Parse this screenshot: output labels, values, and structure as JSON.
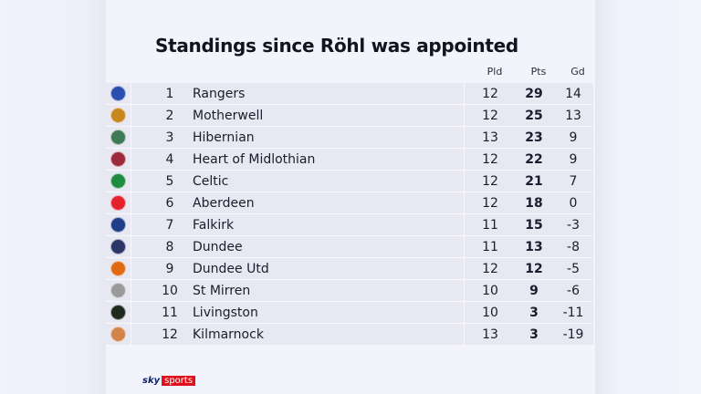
{
  "title": "Standings since Röhl was appointed",
  "columns": {
    "pld": "Pld",
    "pts": "Pts",
    "gd": "Gd"
  },
  "rows": [
    {
      "pos": "1",
      "team": "Rangers",
      "pld": "12",
      "pts": "29",
      "gd": "14",
      "crest_color": "#2a4fb0",
      "crest_icon": "rangers-crest-icon"
    },
    {
      "pos": "2",
      "team": "Motherwell",
      "pld": "12",
      "pts": "25",
      "gd": "13",
      "crest_color": "#c8861e",
      "crest_icon": "motherwell-crest-icon"
    },
    {
      "pos": "3",
      "team": "Hibernian",
      "pld": "13",
      "pts": "23",
      "gd": "9",
      "crest_color": "#3f7a56",
      "crest_icon": "hibernian-crest-icon"
    },
    {
      "pos": "4",
      "team": "Heart of Midlothian",
      "pld": "12",
      "pts": "22",
      "gd": "9",
      "crest_color": "#9b2a3a",
      "crest_icon": "hearts-crest-icon"
    },
    {
      "pos": "5",
      "team": "Celtic",
      "pld": "12",
      "pts": "21",
      "gd": "7",
      "crest_color": "#1f8b3e",
      "crest_icon": "celtic-crest-icon"
    },
    {
      "pos": "6",
      "team": "Aberdeen",
      "pld": "12",
      "pts": "18",
      "gd": "0",
      "crest_color": "#e2232d",
      "crest_icon": "aberdeen-crest-icon"
    },
    {
      "pos": "7",
      "team": "Falkirk",
      "pld": "11",
      "pts": "15",
      "gd": "-3",
      "crest_color": "#1f3f8a",
      "crest_icon": "falkirk-crest-icon"
    },
    {
      "pos": "8",
      "team": "Dundee",
      "pld": "11",
      "pts": "13",
      "gd": "-8",
      "crest_color": "#2b3566",
      "crest_icon": "dundee-crest-icon"
    },
    {
      "pos": "9",
      "team": "Dundee Utd",
      "pld": "12",
      "pts": "12",
      "gd": "-5",
      "crest_color": "#e06a14",
      "crest_icon": "dundee-utd-crest-icon"
    },
    {
      "pos": "10",
      "team": "St Mirren",
      "pld": "10",
      "pts": "9",
      "gd": "-6",
      "crest_color": "#9a9a9a",
      "crest_icon": "st-mirren-crest-icon"
    },
    {
      "pos": "11",
      "team": "Livingston",
      "pld": "10",
      "pts": "3",
      "gd": "-11",
      "crest_color": "#1f2a1c",
      "crest_icon": "livingston-crest-icon"
    },
    {
      "pos": "12",
      "team": "Kilmarnock",
      "pld": "13",
      "pts": "3",
      "gd": "-19",
      "crest_color": "#d2844a",
      "crest_icon": "kilmarnock-crest-icon"
    }
  ],
  "logo": {
    "sky": "sky",
    "sports": "sports"
  },
  "colors": {
    "background": "#f2f3fb",
    "row_bg": "#e7e8f1",
    "text": "#1b1c2e",
    "brand_red": "#e0101a",
    "brand_navy": "#0a1f6b"
  }
}
